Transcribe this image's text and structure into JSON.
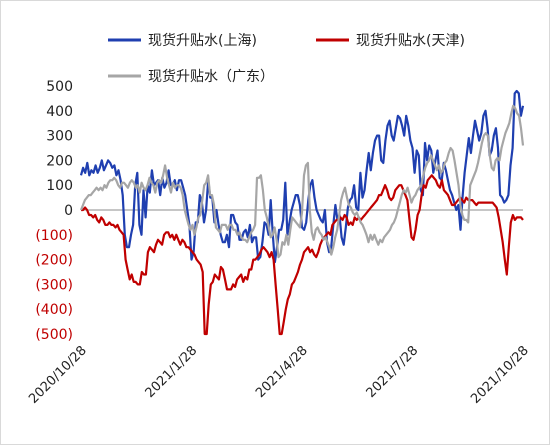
{
  "chart_data": {
    "type": "line",
    "title": "",
    "xlabel": "",
    "ylabel": "",
    "ylim": [
      -500,
      500
    ],
    "yticks": [
      500,
      400,
      300,
      200,
      100,
      0,
      -100,
      -200,
      -300,
      -400,
      -500
    ],
    "ytick_labels": [
      "500",
      "400",
      "300",
      "200",
      "100",
      "0",
      "(100)",
      "(200)",
      "(300)",
      "(400)",
      "(500)"
    ],
    "negative_tick_color": "#c00000",
    "positive_tick_color": "#222222",
    "x_tick_labels": [
      "2020/10/28",
      "2021/1/28",
      "2021/4/28",
      "2021/7/28",
      "2021/10/28"
    ],
    "legend": [
      "现货升贴水(上海)",
      "现货升贴水(天津)",
      "现货升贴水（广东）"
    ],
    "legend_position": "top",
    "grid": false,
    "series": [
      {
        "name": "现货升贴水(上海)",
        "color": "#1f3fb0",
        "values": [
          140,
          170,
          150,
          190,
          140,
          160,
          150,
          180,
          150,
          170,
          200,
          160,
          180,
          200,
          190,
          170,
          180,
          140,
          160,
          120,
          60,
          -100,
          -150,
          -150,
          -100,
          -60,
          100,
          150,
          -60,
          -100,
          80,
          -30,
          100,
          70,
          160,
          100,
          110,
          120,
          60,
          130,
          90,
          110,
          160,
          100,
          100,
          120,
          80,
          120,
          120,
          90,
          60,
          0,
          -60,
          -200,
          -170,
          -50,
          -50,
          60,
          30,
          -50,
          0,
          120,
          50,
          50,
          -50,
          0,
          -60,
          -100,
          -130,
          -130,
          -100,
          -150,
          -20,
          -20,
          -50,
          -60,
          -120,
          -120,
          -90,
          -80,
          -110,
          -60,
          -130,
          -110,
          -110,
          -200,
          -190,
          -130,
          -50,
          -60,
          -100,
          40,
          -100,
          -210,
          -150,
          -80,
          -80,
          -40,
          110,
          -100,
          -50,
          0,
          30,
          60,
          60,
          20,
          -70,
          -80,
          -50,
          40,
          100,
          120,
          50,
          0,
          -20,
          -40,
          -50,
          0,
          -130,
          -170,
          -150,
          -60,
          20,
          -40,
          -20,
          -110,
          -140,
          -70,
          10,
          40,
          50,
          100,
          10,
          0,
          150,
          50,
          80,
          160,
          230,
          160,
          230,
          280,
          300,
          300,
          200,
          190,
          280,
          340,
          360,
          300,
          280,
          330,
          380,
          370,
          340,
          300,
          380,
          340,
          280,
          250,
          150,
          240,
          220,
          80,
          60,
          270,
          200,
          260,
          240,
          150,
          200,
          240,
          130,
          120,
          190,
          160,
          120,
          80,
          60,
          30,
          0,
          20,
          -80,
          50,
          150,
          220,
          290,
          230,
          300,
          360,
          320,
          280,
          310,
          380,
          400,
          330,
          220,
          240,
          300,
          330,
          250,
          60,
          50,
          30,
          40,
          60,
          180,
          250,
          470,
          480,
          470,
          380,
          420
        ]
      },
      {
        "name": "现货升贴水(天津)",
        "color": "#c00000",
        "values": [
          0,
          0,
          10,
          0,
          -20,
          -20,
          -30,
          -20,
          -40,
          -50,
          -30,
          -40,
          -60,
          -60,
          -50,
          -60,
          -60,
          -70,
          -60,
          -80,
          -90,
          -100,
          -200,
          -240,
          -280,
          -260,
          -290,
          -290,
          -300,
          -300,
          -250,
          -260,
          -260,
          -170,
          -150,
          -160,
          -170,
          -140,
          -120,
          -130,
          -140,
          -100,
          -90,
          -90,
          -110,
          -100,
          -120,
          -100,
          -120,
          -140,
          -120,
          -130,
          -150,
          -150,
          -160,
          -170,
          -180,
          -200,
          -210,
          -220,
          -250,
          -500,
          -500,
          -380,
          -300,
          -290,
          -260,
          -270,
          -280,
          -230,
          -240,
          -280,
          -320,
          -320,
          -320,
          -300,
          -310,
          -280,
          -270,
          -260,
          -290,
          -270,
          -280,
          -240,
          -240,
          -200,
          -200,
          -190,
          -180,
          -160,
          -150,
          -160,
          -170,
          -190,
          -170,
          -200,
          -300,
          -400,
          -500,
          -500,
          -450,
          -400,
          -360,
          -340,
          -300,
          -290,
          -270,
          -250,
          -220,
          -200,
          -170,
          -160,
          -150,
          -170,
          -160,
          -180,
          -190,
          -170,
          -140,
          -120,
          -110,
          -100,
          -90,
          -100,
          -60,
          -50,
          -40,
          -40,
          -30,
          -40,
          -20,
          -30,
          -60,
          -50,
          -60,
          -30,
          -40,
          -30,
          -40,
          -30,
          -20,
          -10,
          0,
          10,
          20,
          30,
          40,
          60,
          60,
          80,
          100,
          80,
          50,
          40,
          50,
          80,
          90,
          100,
          100,
          80,
          60,
          40,
          -40,
          -110,
          -120,
          -80,
          -20,
          0,
          60,
          100,
          90,
          120,
          130,
          140,
          130,
          120,
          100,
          90,
          120,
          80,
          70,
          60,
          40,
          20,
          20,
          30,
          40,
          50,
          40,
          30,
          50,
          40,
          40,
          40,
          30,
          20,
          30,
          30,
          30,
          30,
          30,
          30,
          30,
          30,
          20,
          10,
          -30,
          -80,
          -130,
          -200,
          -260,
          -150,
          -50,
          -20,
          -40,
          -30,
          -30,
          -30,
          -40
        ]
      },
      {
        "name": "现货升贴水（广东）",
        "color": "#a6a6a6",
        "values": [
          0,
          20,
          40,
          50,
          60,
          60,
          70,
          80,
          90,
          80,
          90,
          80,
          100,
          90,
          110,
          120,
          120,
          130,
          120,
          100,
          90,
          110,
          110,
          100,
          90,
          110,
          120,
          110,
          90,
          100,
          70,
          110,
          90,
          80,
          100,
          130,
          110,
          100,
          70,
          110,
          120,
          110,
          140,
          180,
          130,
          100,
          70,
          110,
          90,
          100,
          100,
          90,
          60,
          0,
          -30,
          -60,
          -80,
          -60,
          -100,
          -70,
          -30,
          -20,
          40,
          100,
          110,
          140,
          60,
          60,
          20,
          -70,
          -80,
          -90,
          -60,
          -60,
          -60,
          -80,
          -60,
          -60,
          -80,
          -80,
          -100,
          -90,
          -110,
          -120,
          -120,
          -130,
          -110,
          -90,
          -80,
          -60,
          130,
          130,
          140,
          80,
          0,
          -30,
          -70,
          -110,
          -100,
          -70,
          -120,
          -190,
          -180,
          -130,
          -140,
          -100,
          -140,
          -80,
          -30,
          -40,
          -50,
          -60,
          -70,
          -10,
          140,
          180,
          190,
          0,
          -90,
          -120,
          -80,
          -70,
          -90,
          -100,
          -120,
          -110,
          -130,
          -150,
          -180,
          -150,
          -110,
          -80,
          -20,
          40,
          70,
          90,
          50,
          20,
          10,
          -10,
          -20,
          -10,
          -30,
          -50,
          -60,
          -80,
          -100,
          -130,
          -100,
          -120,
          -100,
          -120,
          -140,
          -120,
          -130,
          -110,
          -100,
          -90,
          -80,
          -60,
          -50,
          -30,
          0,
          30,
          60,
          80,
          70,
          90,
          60,
          30,
          50,
          60,
          80,
          90,
          100,
          140,
          170,
          190,
          200,
          220,
          200,
          180,
          160,
          180,
          150,
          160,
          190,
          200,
          230,
          250,
          240,
          200,
          150,
          100,
          20,
          -20,
          -40,
          -40,
          -50,
          100,
          120,
          140,
          160,
          190,
          230,
          270,
          300,
          310,
          300,
          220,
          170,
          160,
          200,
          210,
          200,
          250,
          280,
          310,
          330,
          350,
          390,
          420,
          410,
          390,
          380,
          330,
          260
        ]
      }
    ]
  }
}
